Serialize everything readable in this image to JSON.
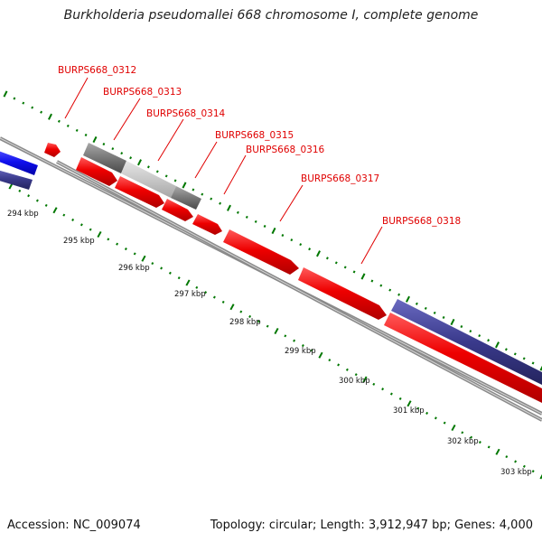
{
  "title": "Burkholderia pseudomallei 668 chromosome I, complete genome",
  "footer": {
    "accession": "Accession: NC_009074",
    "summary": "Topology: circular; Length: 3,912,947 bp; Genes: 4,000"
  },
  "colors": {
    "gene_red": "#ee0000",
    "gene_blue": "#1010ee",
    "gene_navy": "#3a3a8c",
    "gene_gray": "#777777",
    "gene_lightgray": "#c8c8c8",
    "backbone": "#8a8a8a",
    "tick_green": "#007700",
    "label_red": "#e00000"
  },
  "scale_ticks": [
    "294 kbp",
    "295 kbp",
    "296 kbp",
    "297 kbp",
    "298 kbp",
    "299 kbp",
    "300 kbp",
    "301 kbp",
    "302 kbp",
    "303 kbp"
  ],
  "gene_labels": [
    "BURPS668_0312",
    "BURPS668_0313",
    "BURPS668_0314",
    "BURPS668_0315",
    "BURPS668_0316",
    "BURPS668_0317",
    "BURPS668_0318"
  ]
}
